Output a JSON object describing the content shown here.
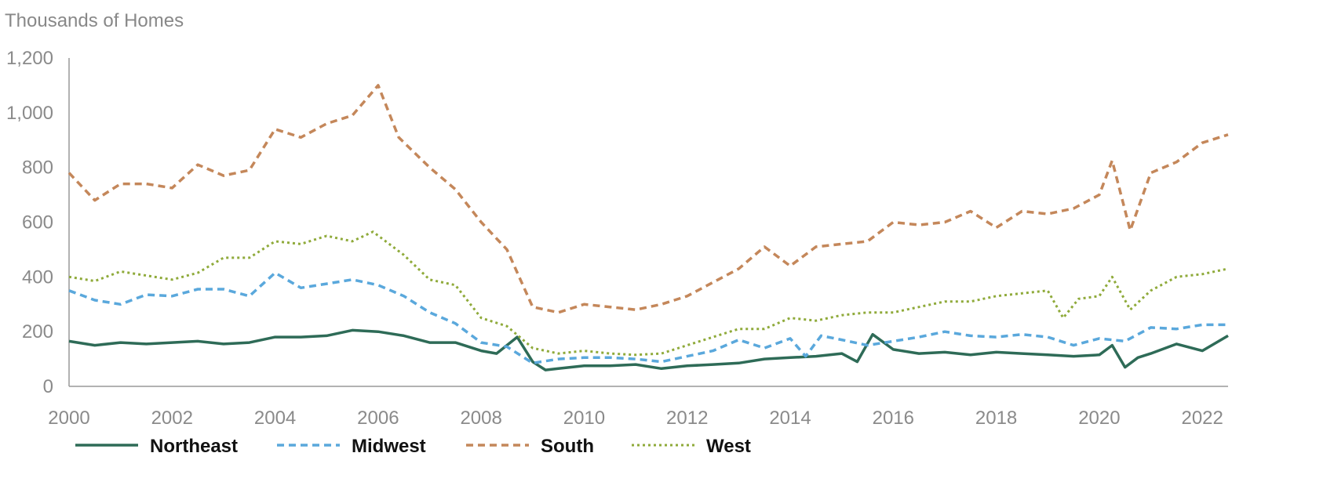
{
  "chart_data": {
    "type": "line",
    "ylabel": "Thousands of Homes",
    "xlim": [
      2000,
      2022.5
    ],
    "ylim": [
      0,
      1200
    ],
    "yticks": [
      0,
      200,
      400,
      600,
      800,
      1000,
      1200
    ],
    "ytick_labels": [
      "0",
      "200",
      "400",
      "600",
      "800",
      "1,000",
      "1,200"
    ],
    "xticks": [
      2000,
      2002,
      2004,
      2006,
      2008,
      2010,
      2012,
      2014,
      2016,
      2018,
      2020,
      2022
    ],
    "xtick_labels": [
      "2000",
      "2002",
      "2004",
      "2006",
      "2008",
      "2010",
      "2012",
      "2014",
      "2016",
      "2018",
      "2020",
      "2022"
    ],
    "grid": false,
    "legend_position": "bottom",
    "series": [
      {
        "name": "Northeast",
        "color": "#2e6b57",
        "style": "solid",
        "x": [
          2000,
          2000.5,
          2001,
          2001.5,
          2002,
          2002.5,
          2003,
          2003.5,
          2004,
          2004.5,
          2005,
          2005.5,
          2006,
          2006.5,
          2007,
          2007.5,
          2008,
          2008.3,
          2008.7,
          2009,
          2009.25,
          2009.5,
          2010,
          2010.5,
          2011,
          2011.5,
          2012,
          2012.5,
          2013,
          2013.5,
          2014,
          2014.5,
          2015,
          2015.3,
          2015.6,
          2016,
          2016.5,
          2017,
          2017.5,
          2018,
          2018.5,
          2019,
          2019.5,
          2020,
          2020.25,
          2020.5,
          2020.75,
          2021,
          2021.5,
          2022,
          2022.5
        ],
        "y": [
          165,
          150,
          160,
          155,
          160,
          165,
          155,
          160,
          180,
          180,
          185,
          205,
          200,
          185,
          160,
          160,
          130,
          120,
          180,
          90,
          60,
          65,
          75,
          75,
          80,
          65,
          75,
          80,
          85,
          100,
          105,
          110,
          120,
          90,
          190,
          135,
          120,
          125,
          115,
          125,
          120,
          115,
          110,
          115,
          150,
          70,
          105,
          120,
          155,
          130,
          185
        ]
      },
      {
        "name": "Midwest",
        "color": "#5aa8dc",
        "style": "dashed",
        "x": [
          2000,
          2000.5,
          2001,
          2001.5,
          2002,
          2002.5,
          2003,
          2003.5,
          2004,
          2004.5,
          2005,
          2005.5,
          2006,
          2006.5,
          2007,
          2007.5,
          2008,
          2008.5,
          2009,
          2009.5,
          2010,
          2010.5,
          2011,
          2011.5,
          2012,
          2012.5,
          2013,
          2013.5,
          2014,
          2014.3,
          2014.6,
          2015,
          2015.5,
          2016,
          2016.5,
          2017,
          2017.5,
          2018,
          2018.5,
          2019,
          2019.5,
          2020,
          2020.5,
          2021,
          2021.5,
          2022,
          2022.5
        ],
        "y": [
          350,
          315,
          300,
          335,
          330,
          355,
          355,
          330,
          415,
          360,
          375,
          390,
          370,
          330,
          270,
          230,
          160,
          145,
          85,
          100,
          105,
          105,
          100,
          90,
          110,
          130,
          170,
          140,
          175,
          110,
          185,
          170,
          150,
          165,
          180,
          200,
          185,
          180,
          190,
          180,
          150,
          175,
          165,
          215,
          210,
          225,
          225
        ]
      },
      {
        "name": "South",
        "color": "#c4875a",
        "style": "dashed",
        "x": [
          2000,
          2000.5,
          2001,
          2001.5,
          2002,
          2002.5,
          2003,
          2003.5,
          2004,
          2004.5,
          2005,
          2005.5,
          2006,
          2006.4,
          2007,
          2007.5,
          2008,
          2008.5,
          2009,
          2009.5,
          2010,
          2010.5,
          2011,
          2011.5,
          2012,
          2012.5,
          2013,
          2013.5,
          2014,
          2014.5,
          2015,
          2015.5,
          2016,
          2016.5,
          2017,
          2017.5,
          2018,
          2018.5,
          2019,
          2019.5,
          2020,
          2020.25,
          2020.6,
          2021,
          2021.5,
          2022,
          2022.5
        ],
        "y": [
          780,
          680,
          740,
          740,
          725,
          810,
          770,
          790,
          940,
          910,
          960,
          990,
          1100,
          910,
          800,
          720,
          600,
          500,
          290,
          270,
          300,
          290,
          280,
          300,
          330,
          380,
          430,
          510,
          440,
          510,
          520,
          530,
          600,
          590,
          600,
          640,
          580,
          640,
          630,
          650,
          700,
          825,
          570,
          780,
          820,
          890,
          920
        ]
      },
      {
        "name": "West",
        "color": "#8faa3a",
        "style": "dotted",
        "x": [
          2000,
          2000.5,
          2001,
          2001.5,
          2002,
          2002.5,
          2003,
          2003.5,
          2004,
          2004.5,
          2005,
          2005.5,
          2005.9,
          2006.5,
          2007,
          2007.5,
          2008,
          2008.5,
          2009,
          2009.5,
          2010,
          2010.5,
          2011,
          2011.5,
          2012,
          2012.5,
          2013,
          2013.5,
          2014,
          2014.5,
          2015,
          2015.5,
          2016,
          2016.5,
          2017,
          2017.5,
          2018,
          2018.5,
          2019,
          2019.3,
          2019.6,
          2020,
          2020.25,
          2020.6,
          2021,
          2021.5,
          2022,
          2022.5
        ],
        "y": [
          400,
          385,
          420,
          405,
          390,
          415,
          470,
          470,
          530,
          520,
          550,
          530,
          565,
          480,
          390,
          370,
          250,
          220,
          140,
          120,
          130,
          120,
          115,
          120,
          150,
          180,
          210,
          210,
          250,
          240,
          260,
          270,
          270,
          290,
          310,
          310,
          330,
          340,
          350,
          250,
          320,
          330,
          400,
          280,
          350,
          400,
          410,
          430
        ]
      }
    ]
  }
}
